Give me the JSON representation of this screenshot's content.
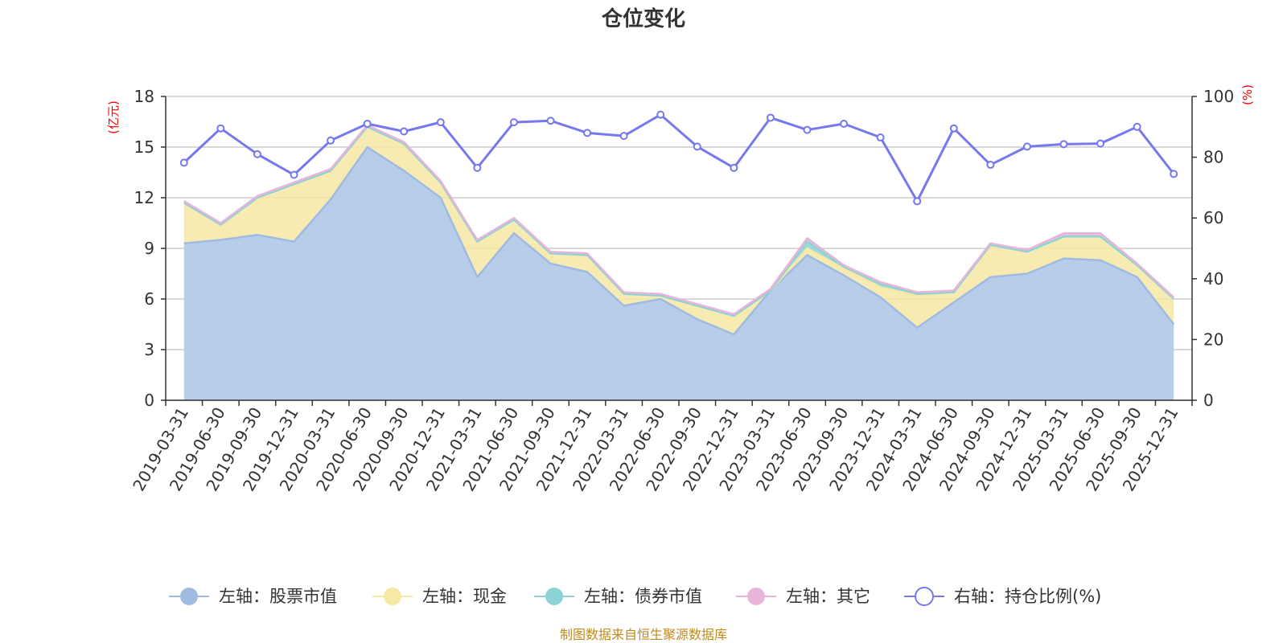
{
  "title": "仓位变化",
  "source": "制图数据来自恒生聚源数据库",
  "colors": {
    "stock": "#9fbbe1",
    "stock_fill": "#b8cdea",
    "cash": "#f7e8a4",
    "bond": "#8dd3d6",
    "other": "#e8b4d9",
    "ratio": "#7777ee",
    "unit": "#ff0000",
    "source": "#c08a1c",
    "grid": "#cccccc"
  },
  "chart_data": {
    "type": "area",
    "title": "仓位变化",
    "left_axis": {
      "unit": "(亿元)",
      "ylim": [
        0,
        18
      ],
      "ticks": [
        "0",
        "3",
        "6",
        "9",
        "12",
        "15",
        "18"
      ]
    },
    "right_axis": {
      "unit": "(%)",
      "ylim": [
        0,
        100
      ],
      "ticks": [
        "0",
        "20",
        "40",
        "60",
        "80",
        "100"
      ]
    },
    "categories": [
      "2019-03-31",
      "2019-06-30",
      "2019-09-30",
      "2019-12-31",
      "2020-03-31",
      "2020-06-30",
      "2020-09-30",
      "2020-12-31",
      "2021-03-31",
      "2021-06-30",
      "2021-09-30",
      "2021-12-31",
      "2022-03-31",
      "2022-06-30",
      "2022-09-30",
      "2022-12-31",
      "2023-03-31",
      "2023-06-30",
      "2023-09-30",
      "2023-12-31",
      "2024-03-31",
      "2024-06-30",
      "2024-09-30",
      "2024-12-31",
      "2025-03-31",
      "2025-06-30",
      "2025-09-30",
      "2025-12-31"
    ],
    "series": [
      {
        "name": "左轴：股票市值",
        "axis": "left",
        "stack": true,
        "values": [
          9.3,
          9.5,
          9.8,
          9.4,
          11.9,
          15.0,
          13.6,
          12.0,
          7.3,
          9.9,
          8.1,
          7.6,
          5.6,
          6.0,
          4.8,
          3.9,
          6.5,
          8.6,
          7.4,
          6.1,
          4.3,
          5.8,
          7.3,
          7.5,
          8.4,
          8.3,
          7.3,
          4.5
        ]
      },
      {
        "name": "左轴：现金",
        "axis": "left",
        "stack": true,
        "values": [
          2.4,
          0.9,
          2.2,
          3.4,
          1.7,
          1.2,
          1.6,
          0.9,
          2.1,
          0.8,
          0.6,
          1.0,
          0.7,
          0.2,
          0.8,
          1.1,
          0.0,
          0.4,
          0.4,
          0.6,
          1.9,
          0.6,
          1.9,
          1.3,
          1.3,
          1.4,
          0.7,
          1.5
        ]
      },
      {
        "name": "左轴：债券市值",
        "axis": "left",
        "stack": true,
        "values": [
          0,
          0,
          0,
          0,
          0,
          0,
          0,
          0,
          0,
          0,
          0,
          0,
          0,
          0,
          0,
          0,
          0,
          0.4,
          0.1,
          0.2,
          0.1,
          0,
          0,
          0,
          0,
          0,
          0,
          0
        ]
      },
      {
        "name": "左轴：其它",
        "axis": "left",
        "stack": true,
        "values": [
          0.1,
          0.1,
          0.1,
          0.1,
          0.1,
          0.1,
          0.1,
          0.1,
          0.1,
          0.1,
          0.1,
          0.1,
          0.1,
          0.1,
          0.1,
          0.1,
          0.1,
          0.2,
          0.1,
          0.1,
          0.1,
          0.1,
          0.1,
          0.1,
          0.2,
          0.2,
          0.1,
          0.1
        ]
      },
      {
        "name": "右轴：持仓比例(%)",
        "axis": "right",
        "stack": false,
        "values": [
          78.2,
          89.5,
          81.0,
          74.2,
          85.5,
          91.0,
          88.5,
          91.5,
          76.5,
          91.5,
          92.0,
          88.0,
          87.0,
          94.0,
          83.5,
          76.5,
          93.0,
          89.0,
          91.0,
          86.5,
          65.5,
          89.5,
          77.5,
          83.5,
          84.3,
          84.5,
          90.0,
          74.5
        ]
      }
    ],
    "legend_position": "bottom",
    "grid": true
  }
}
